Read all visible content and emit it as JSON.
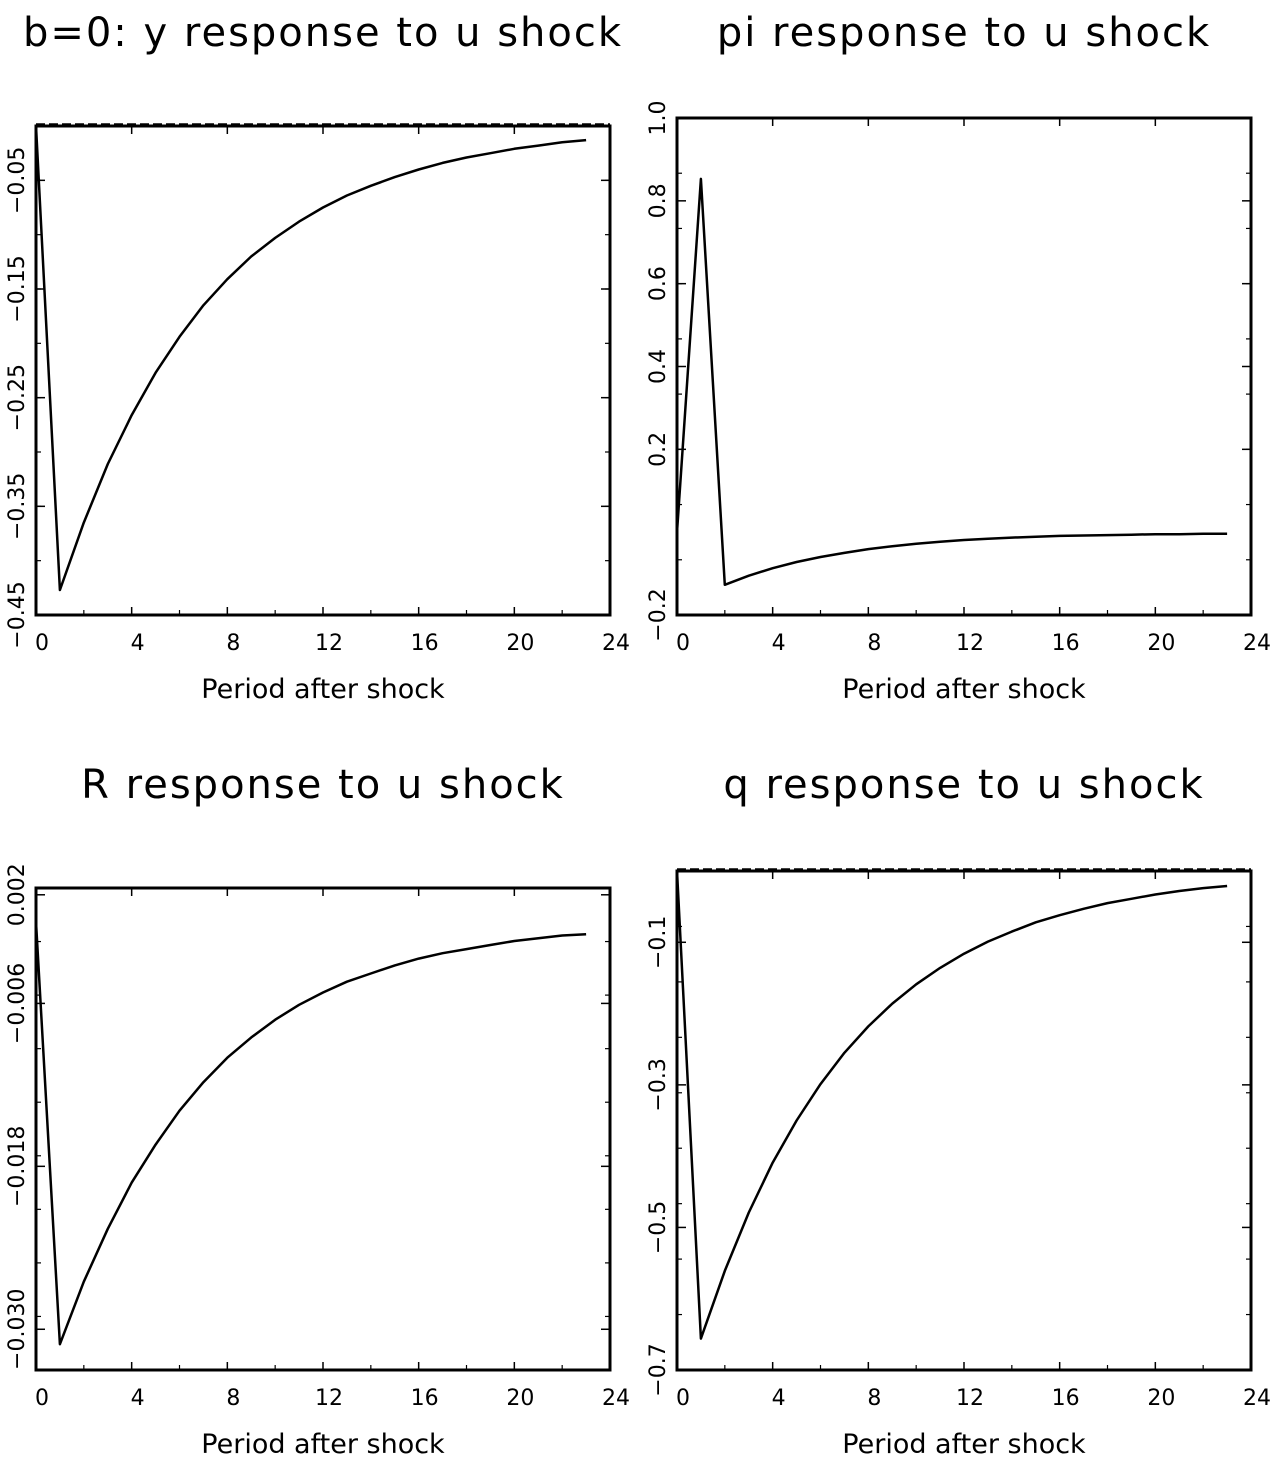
{
  "chart_data": [
    {
      "type": "line",
      "title": "b=0: y response to u shock",
      "xlabel": "Period after shock",
      "ylabel": "",
      "xlim": [
        0,
        24
      ],
      "ylim": [
        -0.45,
        0.0
      ],
      "xticks": [
        "0",
        "4",
        "8",
        "12",
        "16",
        "20",
        "24"
      ],
      "yticks": [
        {
          "value": -0.45,
          "label": "−0.45"
        },
        {
          "value": -0.35,
          "label": "−0.35"
        },
        {
          "value": -0.25,
          "label": "−0.25"
        },
        {
          "value": -0.15,
          "label": "−0.15"
        },
        {
          "value": -0.05,
          "label": "−0.05"
        }
      ],
      "zero_line": true,
      "grid": false,
      "x": [
        0,
        1,
        2,
        3,
        4,
        5,
        6,
        7,
        8,
        9,
        10,
        11,
        12,
        13,
        14,
        15,
        16,
        17,
        18,
        19,
        20,
        21,
        22,
        23
      ],
      "values": [
        0.0,
        -0.427,
        -0.365,
        -0.311,
        -0.266,
        -0.227,
        -0.194,
        -0.165,
        -0.141,
        -0.12,
        -0.103,
        -0.088,
        -0.075,
        -0.064,
        -0.055,
        -0.047,
        -0.04,
        -0.034,
        -0.029,
        -0.025,
        -0.021,
        -0.018,
        -0.015,
        -0.013
      ]
    },
    {
      "type": "line",
      "title": "pi response to u shock",
      "xlabel": "Period after shock",
      "ylabel": "",
      "xlim": [
        0,
        24
      ],
      "ylim": [
        -0.2,
        1.0
      ],
      "xticks": [
        "0",
        "4",
        "8",
        "12",
        "16",
        "20",
        "24"
      ],
      "yticks": [
        {
          "value": -0.2,
          "label": "−0.2"
        },
        {
          "value": 0.2,
          "label": "0.2"
        },
        {
          "value": 0.4,
          "label": "0.4"
        },
        {
          "value": 0.6,
          "label": "0.6"
        },
        {
          "value": 0.8,
          "label": "0.8"
        },
        {
          "value": 1.0,
          "label": "1.0"
        }
      ],
      "zero_line": false,
      "grid": false,
      "x": [
        0,
        1,
        2,
        3,
        4,
        5,
        6,
        7,
        8,
        9,
        10,
        11,
        12,
        13,
        14,
        15,
        16,
        17,
        18,
        19,
        20,
        21,
        22,
        23
      ],
      "values": [
        0.0,
        0.853,
        -0.127,
        -0.105,
        -0.087,
        -0.072,
        -0.06,
        -0.05,
        -0.041,
        -0.034,
        -0.028,
        -0.023,
        -0.019,
        -0.016,
        -0.013,
        -0.011,
        -0.009,
        -0.008,
        -0.007,
        -0.006,
        -0.005,
        -0.005,
        -0.004,
        -0.004
      ]
    },
    {
      "type": "line",
      "title": "R response to u shock",
      "xlabel": "Period after shock",
      "ylabel": "",
      "xlim": [
        0,
        24
      ],
      "ylim": [
        -0.033,
        0.0025
      ],
      "xticks": [
        "0",
        "4",
        "8",
        "12",
        "16",
        "20",
        "24"
      ],
      "yticks": [
        {
          "value": -0.03,
          "label": "−0.030"
        },
        {
          "value": -0.018,
          "label": "−0.018"
        },
        {
          "value": -0.006,
          "label": "−0.006"
        },
        {
          "value": 0.002,
          "label": "0.002"
        }
      ],
      "zero_line": false,
      "grid": false,
      "x": [
        0,
        1,
        2,
        3,
        4,
        5,
        6,
        7,
        8,
        9,
        10,
        11,
        12,
        13,
        14,
        15,
        16,
        17,
        18,
        19,
        20,
        21,
        22,
        23
      ],
      "values": [
        0.0,
        -0.0311,
        -0.0265,
        -0.0226,
        -0.0192,
        -0.0164,
        -0.0139,
        -0.0118,
        -0.01,
        -0.0085,
        -0.0072,
        -0.0061,
        -0.0052,
        -0.0044,
        -0.0038,
        -0.0032,
        -0.0027,
        -0.0023,
        -0.002,
        -0.0017,
        -0.0014,
        -0.0012,
        -0.001,
        -0.0009
      ]
    },
    {
      "type": "line",
      "title": "q response to u shock",
      "xlabel": "Period after shock",
      "ylabel": "",
      "xlim": [
        0,
        24
      ],
      "ylim": [
        -0.7,
        0.0
      ],
      "xticks": [
        "0",
        "4",
        "8",
        "12",
        "16",
        "20",
        "24"
      ],
      "yticks": [
        {
          "value": -0.7,
          "label": "−0.7"
        },
        {
          "value": -0.5,
          "label": "−0.5"
        },
        {
          "value": -0.3,
          "label": "−0.3"
        },
        {
          "value": -0.1,
          "label": "−0.1"
        }
      ],
      "zero_line": true,
      "grid": false,
      "x": [
        0,
        1,
        2,
        3,
        4,
        5,
        6,
        7,
        8,
        9,
        10,
        11,
        12,
        13,
        14,
        15,
        16,
        17,
        18,
        19,
        20,
        21,
        22,
        23
      ],
      "values": [
        0.0,
        -0.656,
        -0.561,
        -0.479,
        -0.409,
        -0.35,
        -0.299,
        -0.255,
        -0.218,
        -0.186,
        -0.159,
        -0.136,
        -0.116,
        -0.099,
        -0.085,
        -0.072,
        -0.062,
        -0.053,
        -0.045,
        -0.039,
        -0.033,
        -0.028,
        -0.024,
        -0.021
      ]
    }
  ]
}
